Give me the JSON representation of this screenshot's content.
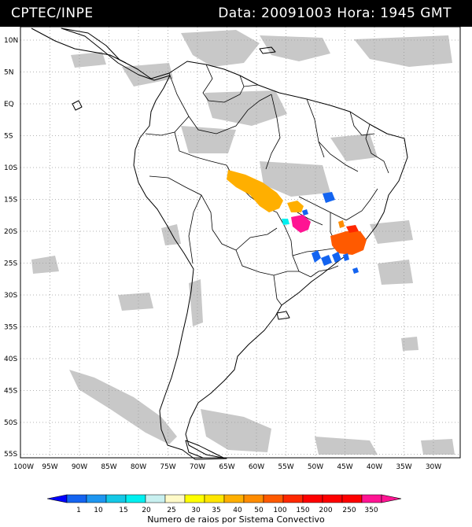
{
  "header": {
    "source": "CPTEC/INPE",
    "stamp": "Data: 20091003 Hora: 1945 GMT"
  },
  "map": {
    "lat_labels": [
      "10N",
      "5N",
      "EQ",
      "5S",
      "10S",
      "15S",
      "20S",
      "25S",
      "30S",
      "35S",
      "40S",
      "45S",
      "50S",
      "55S"
    ],
    "lon_labels": [
      "100W",
      "95W",
      "90W",
      "85W",
      "80W",
      "75W",
      "70W",
      "65W",
      "60W",
      "55W",
      "50W",
      "45W",
      "40W",
      "35W",
      "30W"
    ],
    "lat_range": [
      -56,
      12
    ],
    "lon_range": [
      -100,
      -28
    ],
    "grid": true,
    "colors": {
      "cloud": "#c8c8c8",
      "border": "#000000",
      "grid": "#9a9a9a"
    }
  },
  "legend": {
    "ticks": [
      "1",
      "10",
      "15",
      "20",
      "25",
      "30",
      "35",
      "40",
      "50",
      "100",
      "150",
      "200",
      "250",
      "350"
    ],
    "colors": [
      "#0000ff",
      "#1464f0",
      "#1e96f0",
      "#14c8e6",
      "#00f0f0",
      "#c8f0f0",
      "#fffac8",
      "#ffff00",
      "#ffe600",
      "#ffaf00",
      "#ff8c00",
      "#ff5a00",
      "#ff2800",
      "#ff0000",
      "#ff1493"
    ],
    "caption": "Numero de raios por Sistema Convectivo"
  }
}
